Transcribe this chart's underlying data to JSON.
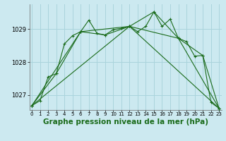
{
  "background_color": "#cce9f0",
  "grid_color": "#aad4dc",
  "line_color": "#1a6b1a",
  "title": "Graphe pression niveau de la mer (hPa)",
  "title_fontsize": 7.5,
  "yticks": [
    1027,
    1028,
    1029
  ],
  "xticks": [
    0,
    1,
    2,
    3,
    4,
    5,
    6,
    7,
    8,
    9,
    10,
    11,
    12,
    13,
    14,
    15,
    16,
    17,
    18,
    19,
    20,
    21,
    22,
    23
  ],
  "ylim": [
    1026.55,
    1029.75
  ],
  "xlim": [
    -0.3,
    23.3
  ],
  "series1_x": [
    0,
    1,
    2,
    3,
    4,
    5,
    6,
    7,
    8,
    9,
    10,
    11,
    12,
    13,
    14,
    15,
    16,
    17,
    18,
    19,
    20,
    21,
    22,
    23
  ],
  "series1_y": [
    1026.68,
    1026.83,
    1027.55,
    1027.65,
    1028.55,
    1028.8,
    1028.92,
    1029.27,
    1028.87,
    1028.82,
    1028.98,
    1029.02,
    1029.08,
    1028.92,
    1029.08,
    1029.52,
    1029.08,
    1029.3,
    1028.72,
    1028.62,
    1028.18,
    1028.2,
    1026.78,
    1026.6
  ],
  "series2_x": [
    0,
    3,
    6,
    9,
    12,
    15,
    18,
    21,
    23
  ],
  "series2_y": [
    1026.68,
    1027.65,
    1028.92,
    1028.82,
    1029.08,
    1029.52,
    1028.72,
    1028.2,
    1026.6
  ],
  "series3_x": [
    0,
    6,
    12,
    18,
    23
  ],
  "series3_y": [
    1026.68,
    1028.92,
    1029.08,
    1028.72,
    1026.6
  ],
  "series4_x": [
    0,
    12,
    23
  ],
  "series4_y": [
    1026.68,
    1029.08,
    1026.6
  ]
}
